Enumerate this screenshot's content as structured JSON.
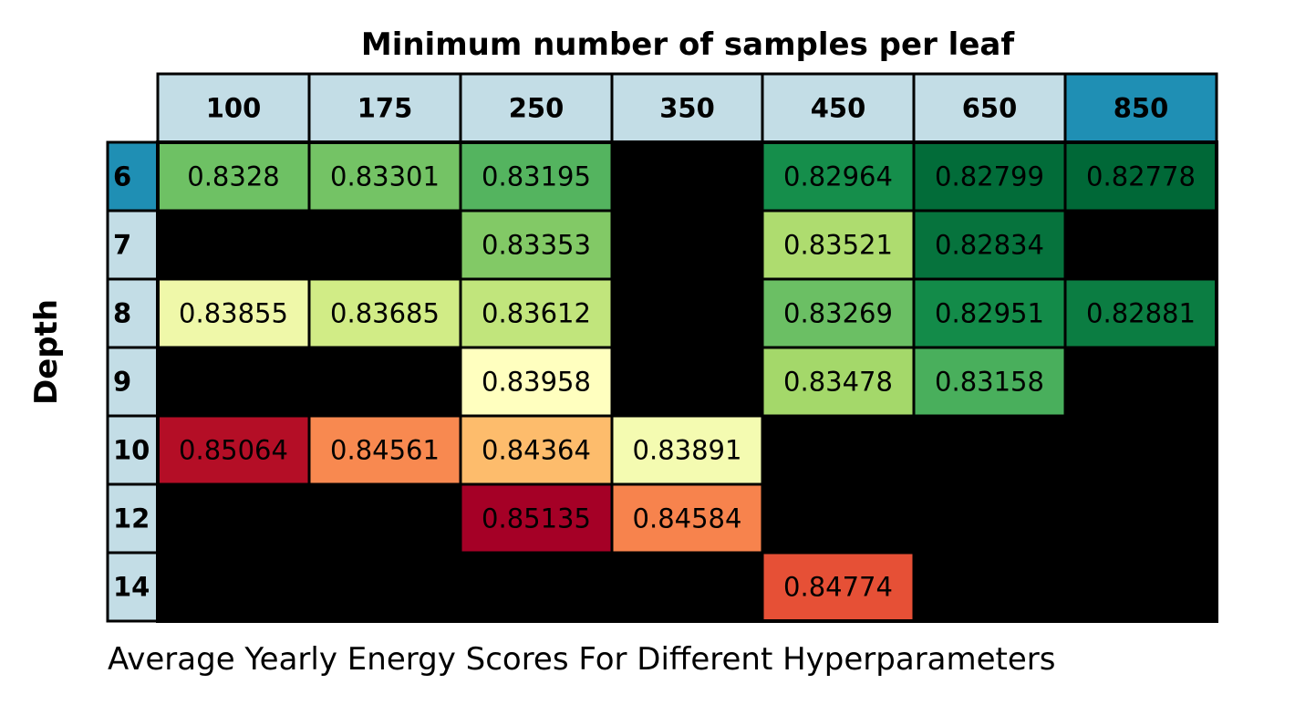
{
  "chart_data": {
    "type": "heatmap",
    "title": "Minimum number of samples per leaf",
    "xlabel": "Average Yearly Energy Scores For Different Hyperparameters",
    "ylabel": "Depth",
    "columns": [
      "100",
      "175",
      "250",
      "350",
      "450",
      "650",
      "850"
    ],
    "rows": [
      "6",
      "7",
      "8",
      "9",
      "10",
      "12",
      "14"
    ],
    "values": [
      [
        "0.8328",
        "0.83301",
        "0.83195",
        null,
        "0.82964",
        "0.82799",
        "0.82778"
      ],
      [
        null,
        null,
        "0.83353",
        null,
        "0.83521",
        "0.82834",
        null
      ],
      [
        "0.83855",
        "0.83685",
        "0.83612",
        null,
        "0.83269",
        "0.82951",
        "0.82881"
      ],
      [
        null,
        null,
        "0.83958",
        null,
        "0.83478",
        "0.83158",
        null
      ],
      [
        "0.85064",
        "0.84561",
        "0.84364",
        "0.83891",
        null,
        null,
        null
      ],
      [
        null,
        null,
        "0.85135",
        "0.84584",
        null,
        null,
        null
      ],
      [
        null,
        null,
        null,
        null,
        "0.84774",
        null,
        null
      ]
    ],
    "colormap": "RdYlGn_r",
    "missing_color": "#000000",
    "header_color": "#c3dde6",
    "highlight_header_color": "#1f8fb4",
    "highlighted_column": "850",
    "highlighted_row": "6"
  }
}
